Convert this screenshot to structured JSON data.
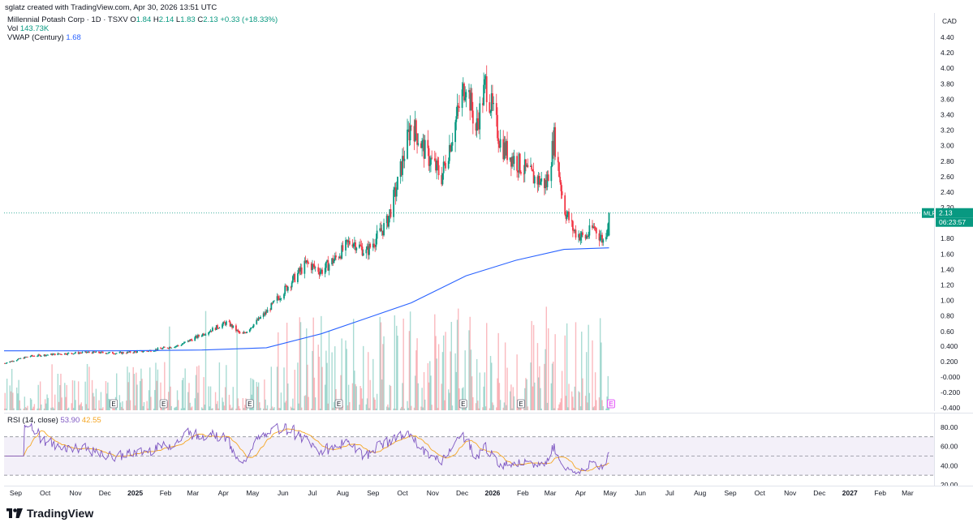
{
  "header": {
    "created_by": "sglatz created with TradingView.com, Apr 30, 2026 13:51 UTC"
  },
  "legend": {
    "symbol_line": "Millennial Potash Corp · 1D · TSXV",
    "open_label": "O",
    "open": "1.84",
    "high_label": "H",
    "high": "2.14",
    "low_label": "L",
    "low": "1.83",
    "close_label": "C",
    "close": "2.13",
    "change": "+0.33 (+18.33%)",
    "vol_label": "Vol",
    "vol": "143.73K",
    "vwap_label": "VWAP (Century)",
    "vwap": "1.68",
    "rsi_label": "RSI (14, close)",
    "rsi": "53.90",
    "rsi_ma": "42.55"
  },
  "price_axis": {
    "currency": "CAD",
    "ticks": [
      "4.40",
      "4.20",
      "4.00",
      "3.80",
      "3.60",
      "3.40",
      "3.20",
      "3.00",
      "2.80",
      "2.60",
      "2.40",
      "2.20",
      "1.80",
      "1.60",
      "1.40",
      "1.20",
      "1.00",
      "0.80",
      "0.60",
      "0.400",
      "0.200",
      "-0.000",
      "-0.200",
      "-0.400"
    ],
    "symbol_badge": "MLP",
    "last_price": "2.13",
    "countdown": "06:23:57"
  },
  "rsi_axis": {
    "ticks": [
      "80.00",
      "60.00",
      "40.00",
      "20.00"
    ]
  },
  "time_axis": {
    "labels": [
      "Sep",
      "Oct",
      "Nov",
      "Dec",
      "2025",
      "Feb",
      "Mar",
      "Apr",
      "May",
      "Jun",
      "Jul",
      "Aug",
      "Sep",
      "Oct",
      "Nov",
      "Dec",
      "2026",
      "Feb",
      "Mar",
      "Apr",
      "May",
      "Jun",
      "Jul",
      "Aug",
      "Sep",
      "Oct",
      "Nov",
      "Dec",
      "2027",
      "Feb",
      "Mar"
    ]
  },
  "earnings_marker": "E",
  "colors": {
    "up": "#089981",
    "down": "#f23645",
    "vwap": "#2962ff",
    "rsi": "#7e57c2",
    "rsi_ma": "#f5a623"
  },
  "footer": {
    "brand": "TradingView",
    "logo_icon": "tradingview-logo-icon"
  },
  "chart_data": {
    "type": "candlestick",
    "price_scale": [
      0.2,
      4.4
    ],
    "overlay_ranges": {
      "volume_axis_ticks": [
        -0.4,
        0.4
      ]
    },
    "approx_close_series": {
      "description_dates": [
        "2024-08-20",
        "2024-09-15",
        "2024-10-15",
        "2024-11-15",
        "2024-12-15",
        "2025-01-15",
        "2025-02-15",
        "2025-03-10",
        "2025-04-05",
        "2025-04-20",
        "2025-05-15",
        "2025-06-10",
        "2025-06-25",
        "2025-07-10",
        "2025-07-25",
        "2025-08-10",
        "2025-08-25",
        "2025-09-15",
        "2025-09-25",
        "2025-10-10",
        "2025-10-25",
        "2025-11-10",
        "2025-11-25",
        "2025-12-05",
        "2025-12-15",
        "2025-12-25",
        "2026-01-10",
        "2026-01-25",
        "2026-02-10",
        "2026-02-25",
        "2026-03-05",
        "2026-03-15",
        "2026-03-25",
        "2026-04-05",
        "2026-04-15",
        "2026-04-25",
        "2026-04-30"
      ],
      "close": [
        0.19,
        0.28,
        0.31,
        0.33,
        0.32,
        0.35,
        0.42,
        0.56,
        0.72,
        0.55,
        0.85,
        1.25,
        1.48,
        1.38,
        1.55,
        1.78,
        1.62,
        2.0,
        2.45,
        3.3,
        2.9,
        2.6,
        3.35,
        3.85,
        3.2,
        3.8,
        3.0,
        2.8,
        2.6,
        2.5,
        3.1,
        2.2,
        1.9,
        1.8,
        1.95,
        1.75,
        2.13
      ]
    },
    "vwap_series": {
      "name": "VWAP (Century)",
      "dates": [
        "2024-08-20",
        "2024-12-15",
        "2025-03-10",
        "2025-05-15",
        "2025-07-10",
        "2025-08-25",
        "2025-10-10",
        "2025-12-05",
        "2026-01-25",
        "2026-03-15",
        "2026-04-30"
      ],
      "values": [
        0.35,
        0.35,
        0.36,
        0.39,
        0.57,
        0.77,
        0.97,
        1.32,
        1.52,
        1.66,
        1.68
      ]
    },
    "rsi": {
      "name": "RSI (14, close)",
      "bands": [
        30,
        50,
        70
      ],
      "range": [
        20,
        90
      ],
      "last": 53.9,
      "ma_last": 42.55
    }
  }
}
